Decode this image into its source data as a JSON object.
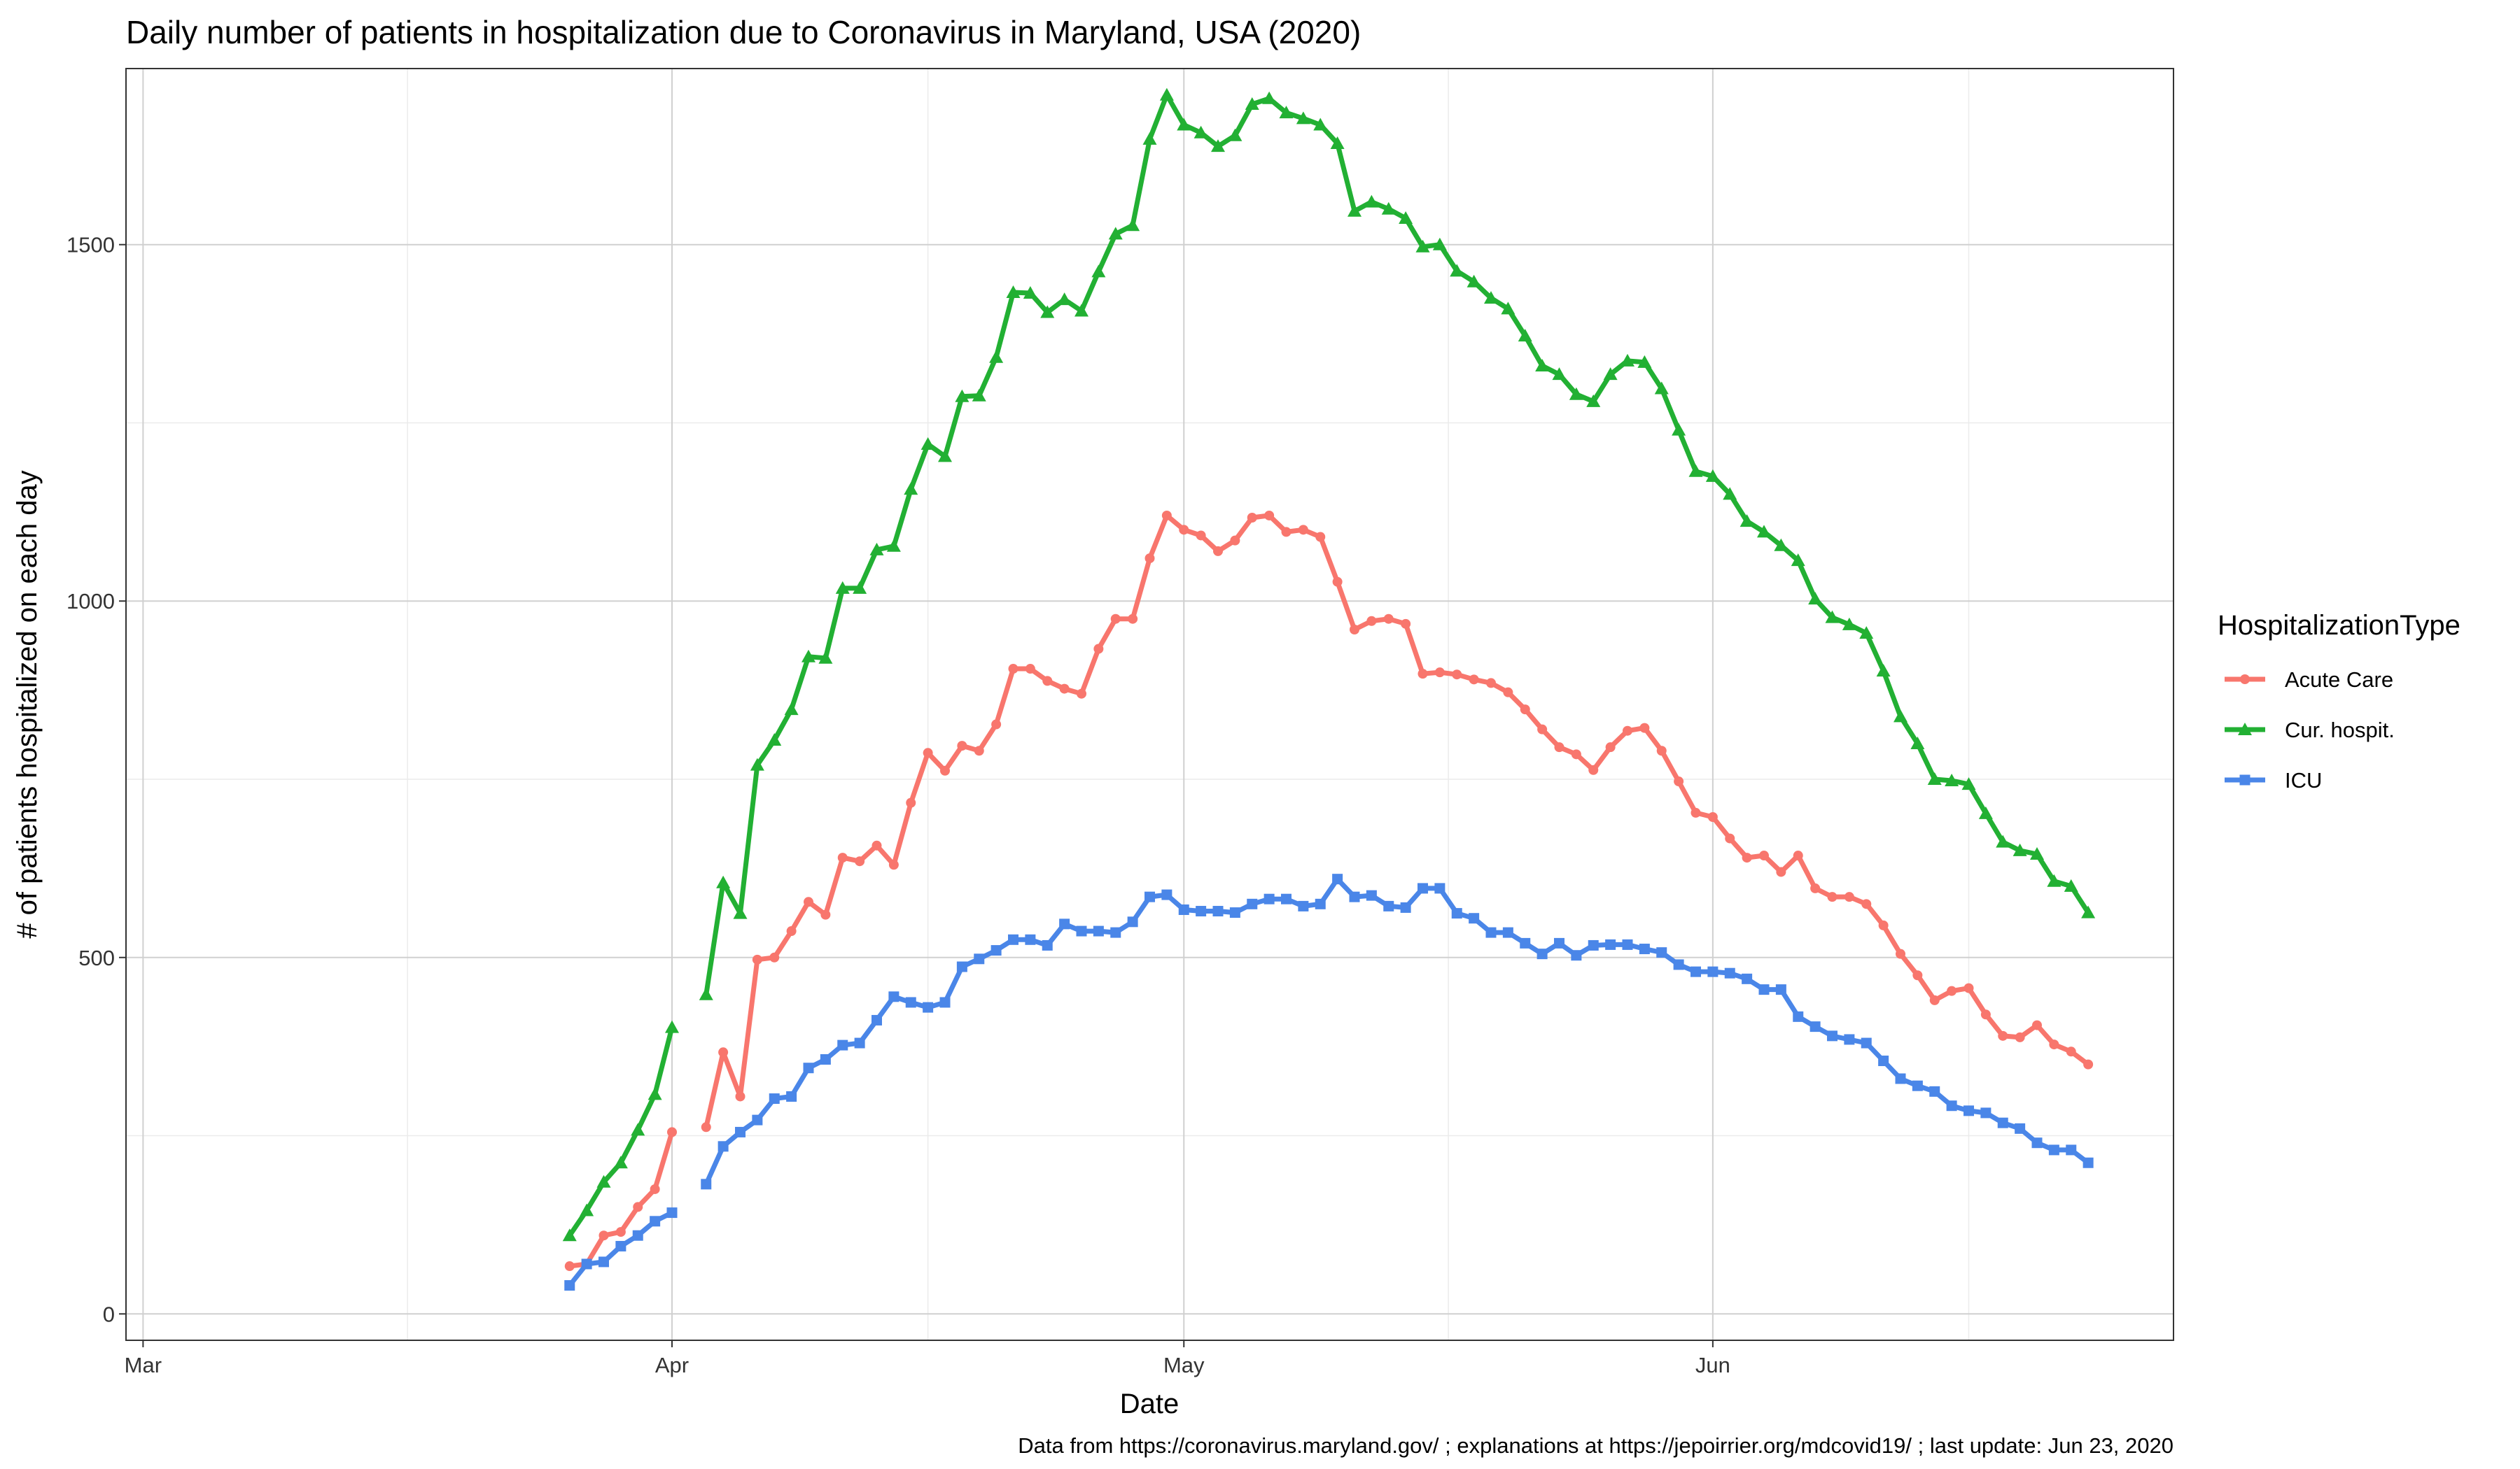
{
  "chart_data": {
    "type": "line",
    "title": "Daily number of patients in hospitalization due to Coronavirus in Maryland, USA (2020)",
    "xlabel": "Date",
    "ylabel": "# of patients hospitalized on each day",
    "caption": "Data from https://coronavirus.maryland.gov/ ; explanations at https://jepoirrier.org/mdcovid19/ ; last update: Jun 23, 2020",
    "legend_title": "HospitalizationType",
    "legend_position": "right",
    "grid": true,
    "xlim": [
      "2020-02-29",
      "2020-06-28"
    ],
    "ylim": [
      -37,
      1747
    ],
    "x_ticks": [
      {
        "date": "2020-03-01",
        "label": "Mar"
      },
      {
        "date": "2020-04-01",
        "label": "Apr"
      },
      {
        "date": "2020-05-01",
        "label": "May"
      },
      {
        "date": "2020-06-01",
        "label": "Jun"
      }
    ],
    "y_ticks": [
      0,
      500,
      1000,
      1500
    ],
    "x_start": "2020-03-26",
    "x_end": "2020-06-22",
    "gap_after": "2020-04-01",
    "series": [
      {
        "name": "Acute Care",
        "color": "#F8766D",
        "marker": "circle",
        "values": [
          67,
          70,
          110,
          115,
          150,
          175,
          255,
          null,
          262,
          367,
          305,
          497,
          500,
          537,
          578,
          560,
          640,
          635,
          657,
          630,
          717,
          787,
          762,
          797,
          790,
          827,
          905,
          905,
          888,
          877,
          870,
          933,
          975,
          975,
          1060,
          1120,
          1100,
          1092,
          1070,
          1085,
          1117,
          1120,
          1097,
          1100,
          1090,
          1027,
          960,
          972,
          975,
          968,
          898,
          900,
          897,
          890,
          885,
          872,
          848,
          820,
          795,
          785,
          763,
          795,
          818,
          822,
          790,
          747,
          703,
          697,
          667,
          640,
          643,
          620,
          643,
          597,
          585,
          585,
          575,
          545,
          505,
          475,
          440,
          453,
          457,
          420,
          390,
          388,
          405,
          378,
          368,
          350
        ]
      },
      {
        "name": "Cur. hospit.",
        "color": "#22B033",
        "marker": "triangle",
        "values": [
          110,
          145,
          185,
          212,
          258,
          308,
          402,
          null,
          448,
          605,
          562,
          770,
          805,
          848,
          922,
          920,
          1018,
          1018,
          1072,
          1077,
          1157,
          1220,
          1203,
          1287,
          1288,
          1342,
          1433,
          1432,
          1405,
          1423,
          1407,
          1462,
          1515,
          1527,
          1648,
          1710,
          1668,
          1657,
          1638,
          1653,
          1697,
          1705,
          1685,
          1677,
          1668,
          1642,
          1547,
          1560,
          1550,
          1537,
          1497,
          1500,
          1463,
          1448,
          1425,
          1410,
          1372,
          1330,
          1318,
          1290,
          1280,
          1318,
          1337,
          1335,
          1298,
          1240,
          1182,
          1175,
          1150,
          1112,
          1097,
          1078,
          1057,
          1003,
          977,
          967,
          955,
          902,
          838,
          800,
          750,
          748,
          743,
          702,
          662,
          650,
          645,
          607,
          600,
          563
        ]
      },
      {
        "name": "ICU",
        "color": "#4A86E8",
        "marker": "square",
        "values": [
          40,
          70,
          73,
          95,
          110,
          130,
          142,
          null,
          182,
          235,
          255,
          272,
          302,
          305,
          345,
          357,
          377,
          380,
          412,
          445,
          437,
          430,
          437,
          487,
          498,
          510,
          525,
          525,
          517,
          547,
          537,
          537,
          535,
          550,
          585,
          588,
          567,
          565,
          565,
          563,
          575,
          582,
          582,
          572,
          575,
          610,
          585,
          587,
          572,
          570,
          597,
          597,
          562,
          555,
          535,
          535,
          520,
          505,
          520,
          503,
          517,
          518,
          518,
          512,
          507,
          490,
          480,
          480,
          478,
          470,
          455,
          455,
          417,
          403,
          390,
          385,
          380,
          355,
          330,
          320,
          312,
          292,
          285,
          282,
          268,
          260,
          240,
          230,
          230,
          212
        ]
      }
    ]
  }
}
